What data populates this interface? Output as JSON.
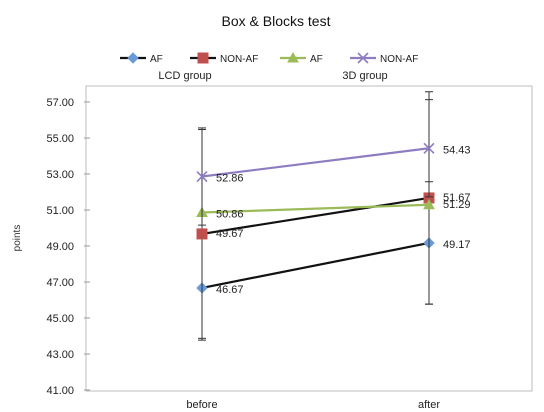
{
  "chart_data": {
    "type": "line",
    "title": "Box & Blocks test",
    "xlabel": "",
    "ylabel": "points",
    "categories": [
      "before",
      "after"
    ],
    "ylim": [
      41,
      57
    ],
    "yticks": [
      "41.00",
      "43.00",
      "45.00",
      "47.00",
      "49.00",
      "51.00",
      "53.00",
      "55.00",
      "57.00"
    ],
    "grid": false,
    "legend": {
      "placement": "top",
      "groups": [
        "LCD group",
        "3D group"
      ]
    },
    "series": [
      {
        "name": "AF",
        "group": "LCD group",
        "color": "#111111",
        "marker": "diamond",
        "marker_color": "#6a9bd8",
        "values": [
          46.67,
          49.17
        ],
        "labels": [
          "46.67",
          "49.17"
        ],
        "errors": [
          2.9,
          3.4
        ]
      },
      {
        "name": "NON-AF",
        "group": "LCD group",
        "color": "#111111",
        "marker": "square",
        "marker_color": "#c0504d",
        "values": [
          49.67,
          51.67
        ],
        "labels": [
          "49.67",
          "51.67"
        ],
        "errors": [
          5.8,
          5.9
        ]
      },
      {
        "name": "AF",
        "group": "3D group",
        "color": "#9bbb59",
        "marker": "triangle",
        "marker_color": "#9bbb59",
        "values": [
          50.86,
          51.29
        ],
        "labels": [
          "50.86",
          "51.29"
        ],
        "errors": [
          null,
          null
        ]
      },
      {
        "name": "NON-AF",
        "group": "3D group",
        "color": "#8e7cc3",
        "marker": "x",
        "marker_color": "#8e7cc3",
        "values": [
          52.86,
          54.43
        ],
        "labels": [
          "52.86",
          "54.43"
        ],
        "errors": [
          2.7,
          2.7
        ]
      }
    ]
  }
}
